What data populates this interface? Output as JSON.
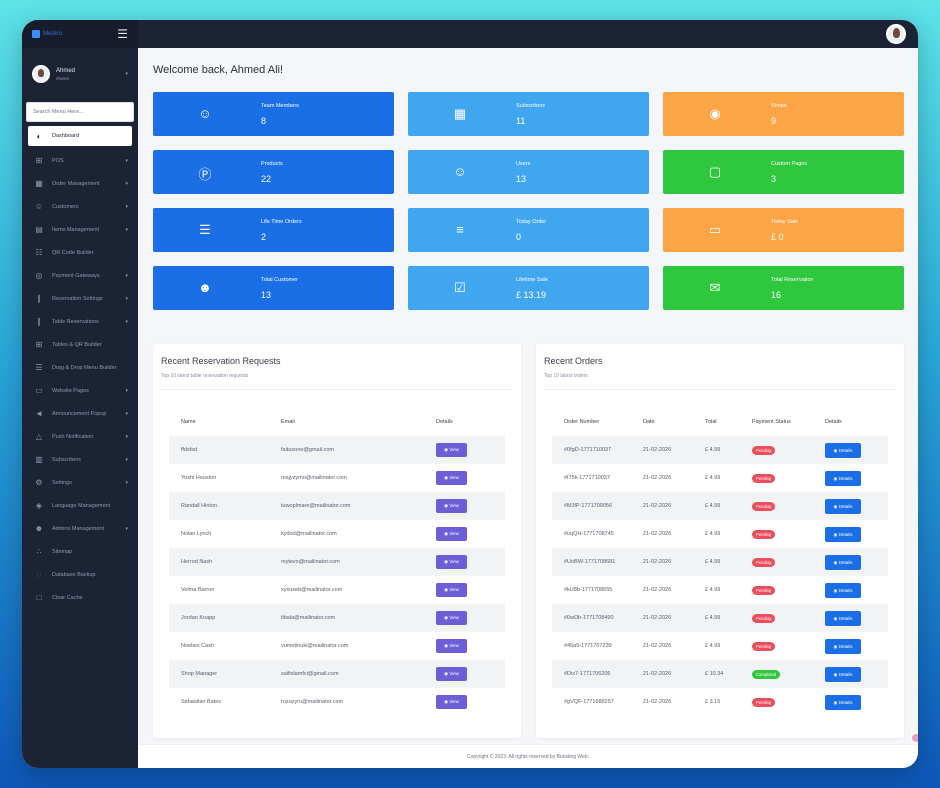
{
  "brand": {
    "name": "Medico"
  },
  "user": {
    "name": "Ahmed",
    "role": "Owner"
  },
  "search": {
    "placeholder": "Search Menu Here..."
  },
  "sidebar": {
    "items": [
      {
        "label": "Dashboard",
        "icon": "palette-icon",
        "caret": false,
        "active": true
      },
      {
        "label": "POS",
        "icon": "cart-icon",
        "caret": true
      },
      {
        "label": "Order Management",
        "icon": "calendar-icon",
        "caret": true
      },
      {
        "label": "Customers",
        "icon": "users-icon",
        "caret": true
      },
      {
        "label": "Items Management",
        "icon": "box-icon",
        "caret": true
      },
      {
        "label": "QR Code Builder",
        "icon": "qrcode-icon",
        "caret": false
      },
      {
        "label": "Payment Gateways",
        "icon": "money-icon",
        "caret": true
      },
      {
        "label": "Reservation Settings",
        "icon": "utensils-icon",
        "caret": true
      },
      {
        "label": "Table Reservations",
        "icon": "utensils-icon",
        "caret": true
      },
      {
        "label": "Tables & QR Builder",
        "icon": "table-icon",
        "caret": false
      },
      {
        "label": "Drag & Drop Menu Builder",
        "icon": "bars-icon",
        "caret": false
      },
      {
        "label": "Website Pages",
        "icon": "monitor-icon",
        "caret": true
      },
      {
        "label": "Announcement Popup",
        "icon": "megaphone-icon",
        "caret": true
      },
      {
        "label": "Push Notification",
        "icon": "bell-icon",
        "caret": true
      },
      {
        "label": "Subscribers",
        "icon": "subscribers-icon",
        "caret": true
      },
      {
        "label": "Settings",
        "icon": "gear-icon",
        "caret": true
      },
      {
        "label": "Language Management",
        "icon": "language-icon",
        "caret": false
      },
      {
        "label": "Admins Management",
        "icon": "admins-icon",
        "caret": true
      },
      {
        "label": "Sitemap",
        "icon": "sitemap-icon",
        "caret": false
      },
      {
        "label": "Database Backup",
        "icon": "database-icon",
        "caret": false
      },
      {
        "label": "Clear Cache",
        "icon": "trash-icon",
        "caret": false
      }
    ]
  },
  "welcome": "Welcome back, Ahmed Ali!",
  "cards": [
    {
      "title": "Team Members",
      "value": "8",
      "color": "#1b6fe6",
      "icon": "team-icon"
    },
    {
      "title": "Subscribers",
      "value": "11",
      "color": "#41a6f0",
      "icon": "newspaper-icon"
    },
    {
      "title": "Shops",
      "value": "9",
      "color": "#fba546",
      "icon": "shop-icon"
    },
    {
      "title": "Products",
      "value": "22",
      "color": "#1b6fe6",
      "icon": "product-icon"
    },
    {
      "title": "Users",
      "value": "13",
      "color": "#41a6f0",
      "icon": "users-icon"
    },
    {
      "title": "Custom Pages",
      "value": "3",
      "color": "#2ec73d",
      "icon": "file-icon"
    },
    {
      "title": "Life Time Orders",
      "value": "2",
      "color": "#1b6fe6",
      "icon": "server-icon"
    },
    {
      "title": "Today Order",
      "value": "0",
      "color": "#41a6f0",
      "icon": "list-icon"
    },
    {
      "title": "Today Sale",
      "value": "£ 0",
      "color": "#fba546",
      "icon": "credit-card-icon"
    },
    {
      "title": "Total Customer",
      "value": "13",
      "color": "#1b6fe6",
      "icon": "customers-icon"
    },
    {
      "title": "Lifetime Sale",
      "value": "£ 13.19",
      "color": "#41a6f0",
      "icon": "check-square-icon"
    },
    {
      "title": "Total Reservation",
      "value": "16",
      "color": "#2ec73d",
      "icon": "envelope-icon"
    }
  ],
  "reservations": {
    "title": "Recent Reservation Requests",
    "subtitle": "Top 10 latest table reservation requests",
    "headers": [
      "Name",
      "Email",
      "Details"
    ],
    "button_label": "View",
    "rows": [
      {
        "name": "ffdsfsd",
        "email": "faitusone@gmail.com"
      },
      {
        "name": "Yoshi Houston",
        "email": "majyzymo@mailinator.com"
      },
      {
        "name": "Randall Hinton",
        "email": "tuwoplmare@mailinator.com"
      },
      {
        "name": "Nolan Lynch",
        "email": "kydod@mailinator.com"
      },
      {
        "name": "Herrod Nash",
        "email": "mytevo@mailinator.com"
      },
      {
        "name": "Velma Barron",
        "email": "xyxuseb@mailinator.com"
      },
      {
        "name": "Jordan Knapp",
        "email": "tibala@mailinator.com"
      },
      {
        "name": "Noelani Cash",
        "email": "vumetinuki@mailinator.com"
      },
      {
        "name": "Shop Manager",
        "email": "saifislamfci@gmail.com"
      },
      {
        "name": "Sebastian Bates",
        "email": "rozuzyru@mailinator.com"
      }
    ]
  },
  "orders": {
    "title": "Recent Orders",
    "subtitle": "Top 10 latest orders",
    "headers": [
      "Order Number",
      "Date",
      "Total",
      "Payment Status",
      "Details"
    ],
    "button_label": "Details",
    "rows": [
      {
        "number": "#0fgD-1771710037",
        "date": "21-02-2026",
        "total": "£ 4.99",
        "status": "Pending"
      },
      {
        "number": "#I75k-1771710037",
        "date": "21-02-2026",
        "total": "£ 4.99",
        "status": "Pending"
      },
      {
        "number": "#MJfP-1771709056",
        "date": "21-02-2026",
        "total": "£ 4.99",
        "status": "Pending"
      },
      {
        "number": "#uqQH-1771708745",
        "date": "21-02-2026",
        "total": "£ 4.99",
        "status": "Pending"
      },
      {
        "number": "#UoBW-1771708681",
        "date": "21-02-2026",
        "total": "£ 4.99",
        "status": "Pending"
      },
      {
        "number": "#kU8b-1771708655",
        "date": "21-02-2026",
        "total": "£ 4.99",
        "status": "Pending"
      },
      {
        "number": "#0wDb-1771708490",
        "date": "21-02-2026",
        "total": "£ 4.99",
        "status": "Pending"
      },
      {
        "number": "#45a5-1771707239",
        "date": "21-02-2026",
        "total": "£ 4.99",
        "status": "Pending"
      },
      {
        "number": "#Dix7-1771706206",
        "date": "21-02-2026",
        "total": "£ 10.34",
        "status": "Completed"
      },
      {
        "number": "#gVQF-1771688257",
        "date": "21-02-2026",
        "total": "£ 3.15",
        "status": "Pending"
      }
    ]
  },
  "footer": "Copyright © 2023. All rights reserved by Buristing Web."
}
